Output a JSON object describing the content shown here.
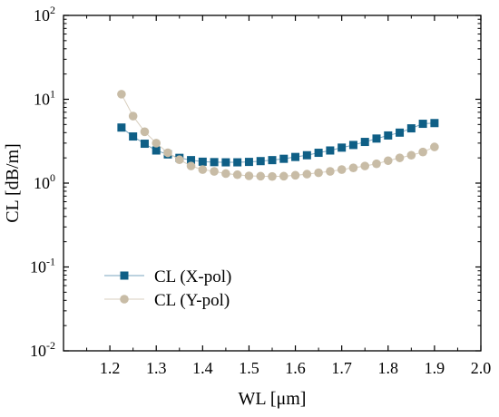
{
  "chart_data": {
    "type": "scatter",
    "xlabel": "WL  [μm]",
    "ylabel": "CL [dB/m]",
    "x_scale": "linear",
    "y_scale": "log",
    "xlim": [
      1.1,
      2.0
    ],
    "ylim": [
      0.01,
      100
    ],
    "x_ticks": [
      "1.2",
      "1.3",
      "1.4",
      "1.5",
      "1.6",
      "1.7",
      "1.8",
      "1.9",
      "2.0"
    ],
    "x_tick_values": [
      1.2,
      1.3,
      1.4,
      1.5,
      1.6,
      1.7,
      1.8,
      1.9,
      2.0
    ],
    "y_tick_exponents": [
      "-2",
      "-1",
      "0",
      "1",
      "2"
    ],
    "y_tick_values": [
      0.01,
      0.1,
      1,
      10,
      100
    ],
    "legend_position": "lower-left",
    "grid": false,
    "series": [
      {
        "name": "CL (X-pol)",
        "marker": "square",
        "color": "#0f5f86",
        "line_color": "#7aa6bf",
        "x": [
          1.225,
          1.25,
          1.275,
          1.3,
          1.325,
          1.35,
          1.375,
          1.4,
          1.425,
          1.45,
          1.475,
          1.5,
          1.525,
          1.55,
          1.575,
          1.6,
          1.625,
          1.65,
          1.675,
          1.7,
          1.725,
          1.75,
          1.775,
          1.8,
          1.825,
          1.85,
          1.875,
          1.9
        ],
        "y": [
          4.6,
          3.6,
          2.95,
          2.45,
          2.2,
          2.0,
          1.88,
          1.8,
          1.78,
          1.77,
          1.77,
          1.79,
          1.83,
          1.88,
          1.95,
          2.05,
          2.15,
          2.3,
          2.45,
          2.65,
          2.85,
          3.1,
          3.4,
          3.7,
          4.0,
          4.5,
          5.1,
          5.2
        ]
      },
      {
        "name": "CL (Y-pol)",
        "marker": "circle",
        "color": "#c8bca6",
        "line_color": "#d8cfbf",
        "x": [
          1.225,
          1.25,
          1.275,
          1.3,
          1.325,
          1.35,
          1.375,
          1.4,
          1.425,
          1.45,
          1.475,
          1.5,
          1.525,
          1.55,
          1.575,
          1.6,
          1.625,
          1.65,
          1.675,
          1.7,
          1.725,
          1.75,
          1.775,
          1.8,
          1.825,
          1.85,
          1.875,
          1.9
        ],
        "y": [
          11.5,
          6.3,
          4.1,
          3.0,
          2.3,
          1.9,
          1.6,
          1.45,
          1.38,
          1.3,
          1.26,
          1.22,
          1.21,
          1.2,
          1.21,
          1.24,
          1.28,
          1.33,
          1.38,
          1.45,
          1.52,
          1.6,
          1.7,
          1.85,
          2.0,
          2.15,
          2.35,
          2.7
        ]
      }
    ]
  }
}
